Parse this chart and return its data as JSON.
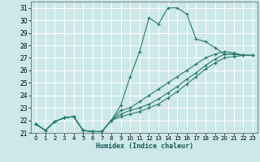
{
  "title": "",
  "xlabel": "Humidex (Indice chaleur)",
  "bg_color": "#cce8e8",
  "line_color": "#2a7a6a",
  "grid_color": "#ffffff",
  "xlim": [
    -0.5,
    23.5
  ],
  "ylim": [
    21,
    31.5
  ],
  "yticks": [
    21,
    22,
    23,
    24,
    25,
    26,
    27,
    28,
    29,
    30,
    31
  ],
  "xticks": [
    0,
    1,
    2,
    3,
    4,
    5,
    6,
    7,
    8,
    9,
    10,
    11,
    12,
    13,
    14,
    15,
    16,
    17,
    18,
    19,
    20,
    21,
    22,
    23
  ],
  "series": [
    [
      21.7,
      21.2,
      21.9,
      22.2,
      22.3,
      21.2,
      21.1,
      21.1,
      22.0,
      23.2,
      25.5,
      27.5,
      30.2,
      29.7,
      31.0,
      31.0,
      30.5,
      28.5,
      28.3,
      27.8,
      27.3,
      27.3,
      27.2,
      27.2
    ],
    [
      21.7,
      21.2,
      21.9,
      22.2,
      22.3,
      21.2,
      21.1,
      21.1,
      22.0,
      22.8,
      23.0,
      23.5,
      24.0,
      24.5,
      25.0,
      25.5,
      26.0,
      26.5,
      27.0,
      27.3,
      27.5,
      27.4,
      27.2,
      27.2
    ],
    [
      21.7,
      21.2,
      21.9,
      22.2,
      22.3,
      21.2,
      21.1,
      21.1,
      22.0,
      22.5,
      22.8,
      23.0,
      23.3,
      23.7,
      24.2,
      24.7,
      25.3,
      25.8,
      26.4,
      26.9,
      27.3,
      27.3,
      27.2,
      27.2
    ],
    [
      21.7,
      21.2,
      21.9,
      22.2,
      22.3,
      21.2,
      21.1,
      21.1,
      22.0,
      22.3,
      22.5,
      22.7,
      23.0,
      23.3,
      23.8,
      24.3,
      24.9,
      25.5,
      26.1,
      26.6,
      27.0,
      27.1,
      27.2,
      27.2
    ]
  ]
}
